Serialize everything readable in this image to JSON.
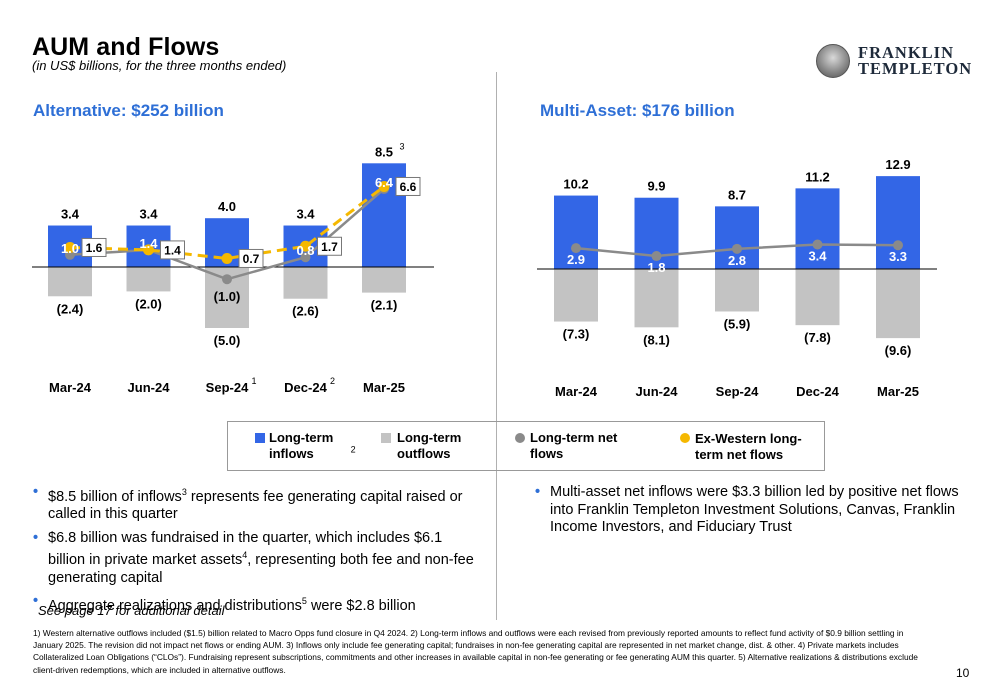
{
  "header": {
    "title": "AUM and Flows",
    "subtitle": "(in US$ billions, for the three months ended)"
  },
  "logo": {
    "line1": "FRANKLIN",
    "line2": "TEMPLETON"
  },
  "colors": {
    "inflows": "#3366e6",
    "outflows": "#c3c3c3",
    "net": "#8a8a8a",
    "ex_western": "#f5b800",
    "title_blue": "#2e6fd6"
  },
  "chart_data": [
    {
      "type": "bar",
      "title": "Alternative: $252 billion",
      "categories": [
        "Mar-24",
        "Jun-24",
        "Sep-24",
        "Dec-24",
        "Mar-25"
      ],
      "category_superscripts": [
        "",
        "",
        "1",
        "2",
        ""
      ],
      "series": [
        {
          "name": "Long-term inflows",
          "values": [
            3.4,
            3.4,
            4.0,
            3.4,
            8.5
          ],
          "labels": [
            "3.4",
            "3.4",
            "4.0",
            "3.4",
            "8.5"
          ],
          "label_superscripts": [
            "",
            "",
            "",
            "",
            "3"
          ]
        },
        {
          "name": "Long-term outflows",
          "values": [
            -2.4,
            -2.0,
            -5.0,
            -2.6,
            -2.1
          ],
          "labels": [
            "(2.4)",
            "(2.0)",
            "(5.0)",
            "(2.6)",
            "(2.1)"
          ]
        },
        {
          "name": "Long-term net flows",
          "values": [
            1.0,
            1.4,
            -1.0,
            0.8,
            6.4
          ],
          "labels": [
            "1.0",
            "1.4",
            "(1.0)",
            "0.8",
            "6.4"
          ]
        },
        {
          "name": "Ex-Western long-term net flows",
          "values": [
            1.6,
            1.4,
            0.7,
            1.7,
            6.6
          ],
          "labels": [
            "1.6",
            "1.4",
            "0.7",
            "1.7",
            "6.6"
          ]
        }
      ],
      "ylim": [
        -6,
        10.5
      ]
    },
    {
      "type": "bar",
      "title": "Multi-Asset: $176 billion",
      "categories": [
        "Mar-24",
        "Jun-24",
        "Sep-24",
        "Dec-24",
        "Mar-25"
      ],
      "series": [
        {
          "name": "Long-term inflows",
          "values": [
            10.2,
            9.9,
            8.7,
            11.2,
            12.9
          ],
          "labels": [
            "10.2",
            "9.9",
            "8.7",
            "11.2",
            "12.9"
          ]
        },
        {
          "name": "Long-term outflows",
          "values": [
            -7.3,
            -8.1,
            -5.9,
            -7.8,
            -9.6
          ],
          "labels": [
            "(7.3)",
            "(8.1)",
            "(5.9)",
            "(7.8)",
            "(9.6)"
          ]
        },
        {
          "name": "Long-term net flows",
          "values": [
            2.9,
            1.8,
            2.8,
            3.4,
            3.3
          ],
          "labels": [
            "2.9",
            "1.8",
            "2.8",
            "3.4",
            "3.3"
          ]
        }
      ],
      "ylim": [
        -11,
        15
      ]
    }
  ],
  "legend": {
    "inflows": "Long-term inflows",
    "inflows_sup": "2",
    "outflows": "Long-term outflows",
    "net": "Long-term net flows",
    "ex_western": "Ex-Western long-term net flows"
  },
  "bullets_left": {
    "b1_pre": "$8.5 billion of inflows",
    "b1_sup": "3",
    "b1_post": " represents fee generating capital raised or called in this quarter",
    "b2_pre": "$6.8 billion was fundraised in the quarter, which includes $6.1 billion in private market assets",
    "b2_sup": "4",
    "b2_post": ", representing both fee and non-fee generating capital",
    "b3_pre": "Aggregate realizations and distributions",
    "b3_sup": "5",
    "b3_post": " were $2.8 billion"
  },
  "bullets_right": {
    "b1": "Multi-asset net inflows were $3.3 billion led by positive net flows into Franklin Templeton Investment Solutions, Canvas, Franklin Income Investors, and Fiduciary Trust"
  },
  "see_page": "See page 17 for additional detail",
  "footnote": "1) Western alternative outflows included ($1.5) billion related to Macro Opps fund closure in Q4 2024. 2) Long-term inflows and outflows were each revised from previously reported amounts to reflect fund activity of $0.9 billion settling in January 2025. The revision did not impact net flows or ending AUM. 3) Inflows only include fee generating capital; fundraises in non-fee generating capital are represented in net market change, dist. & other. 4) Private markets includes Collateralized Loan Obligations (“CLOs”). Fundraising represent subscriptions, commitments and other increases in available capital in non-fee generating or fee generating AUM this quarter. 5) Alternative realizations & distributions exclude client-driven redemptions, which are included in alternative outflows.",
  "page_number": "10"
}
